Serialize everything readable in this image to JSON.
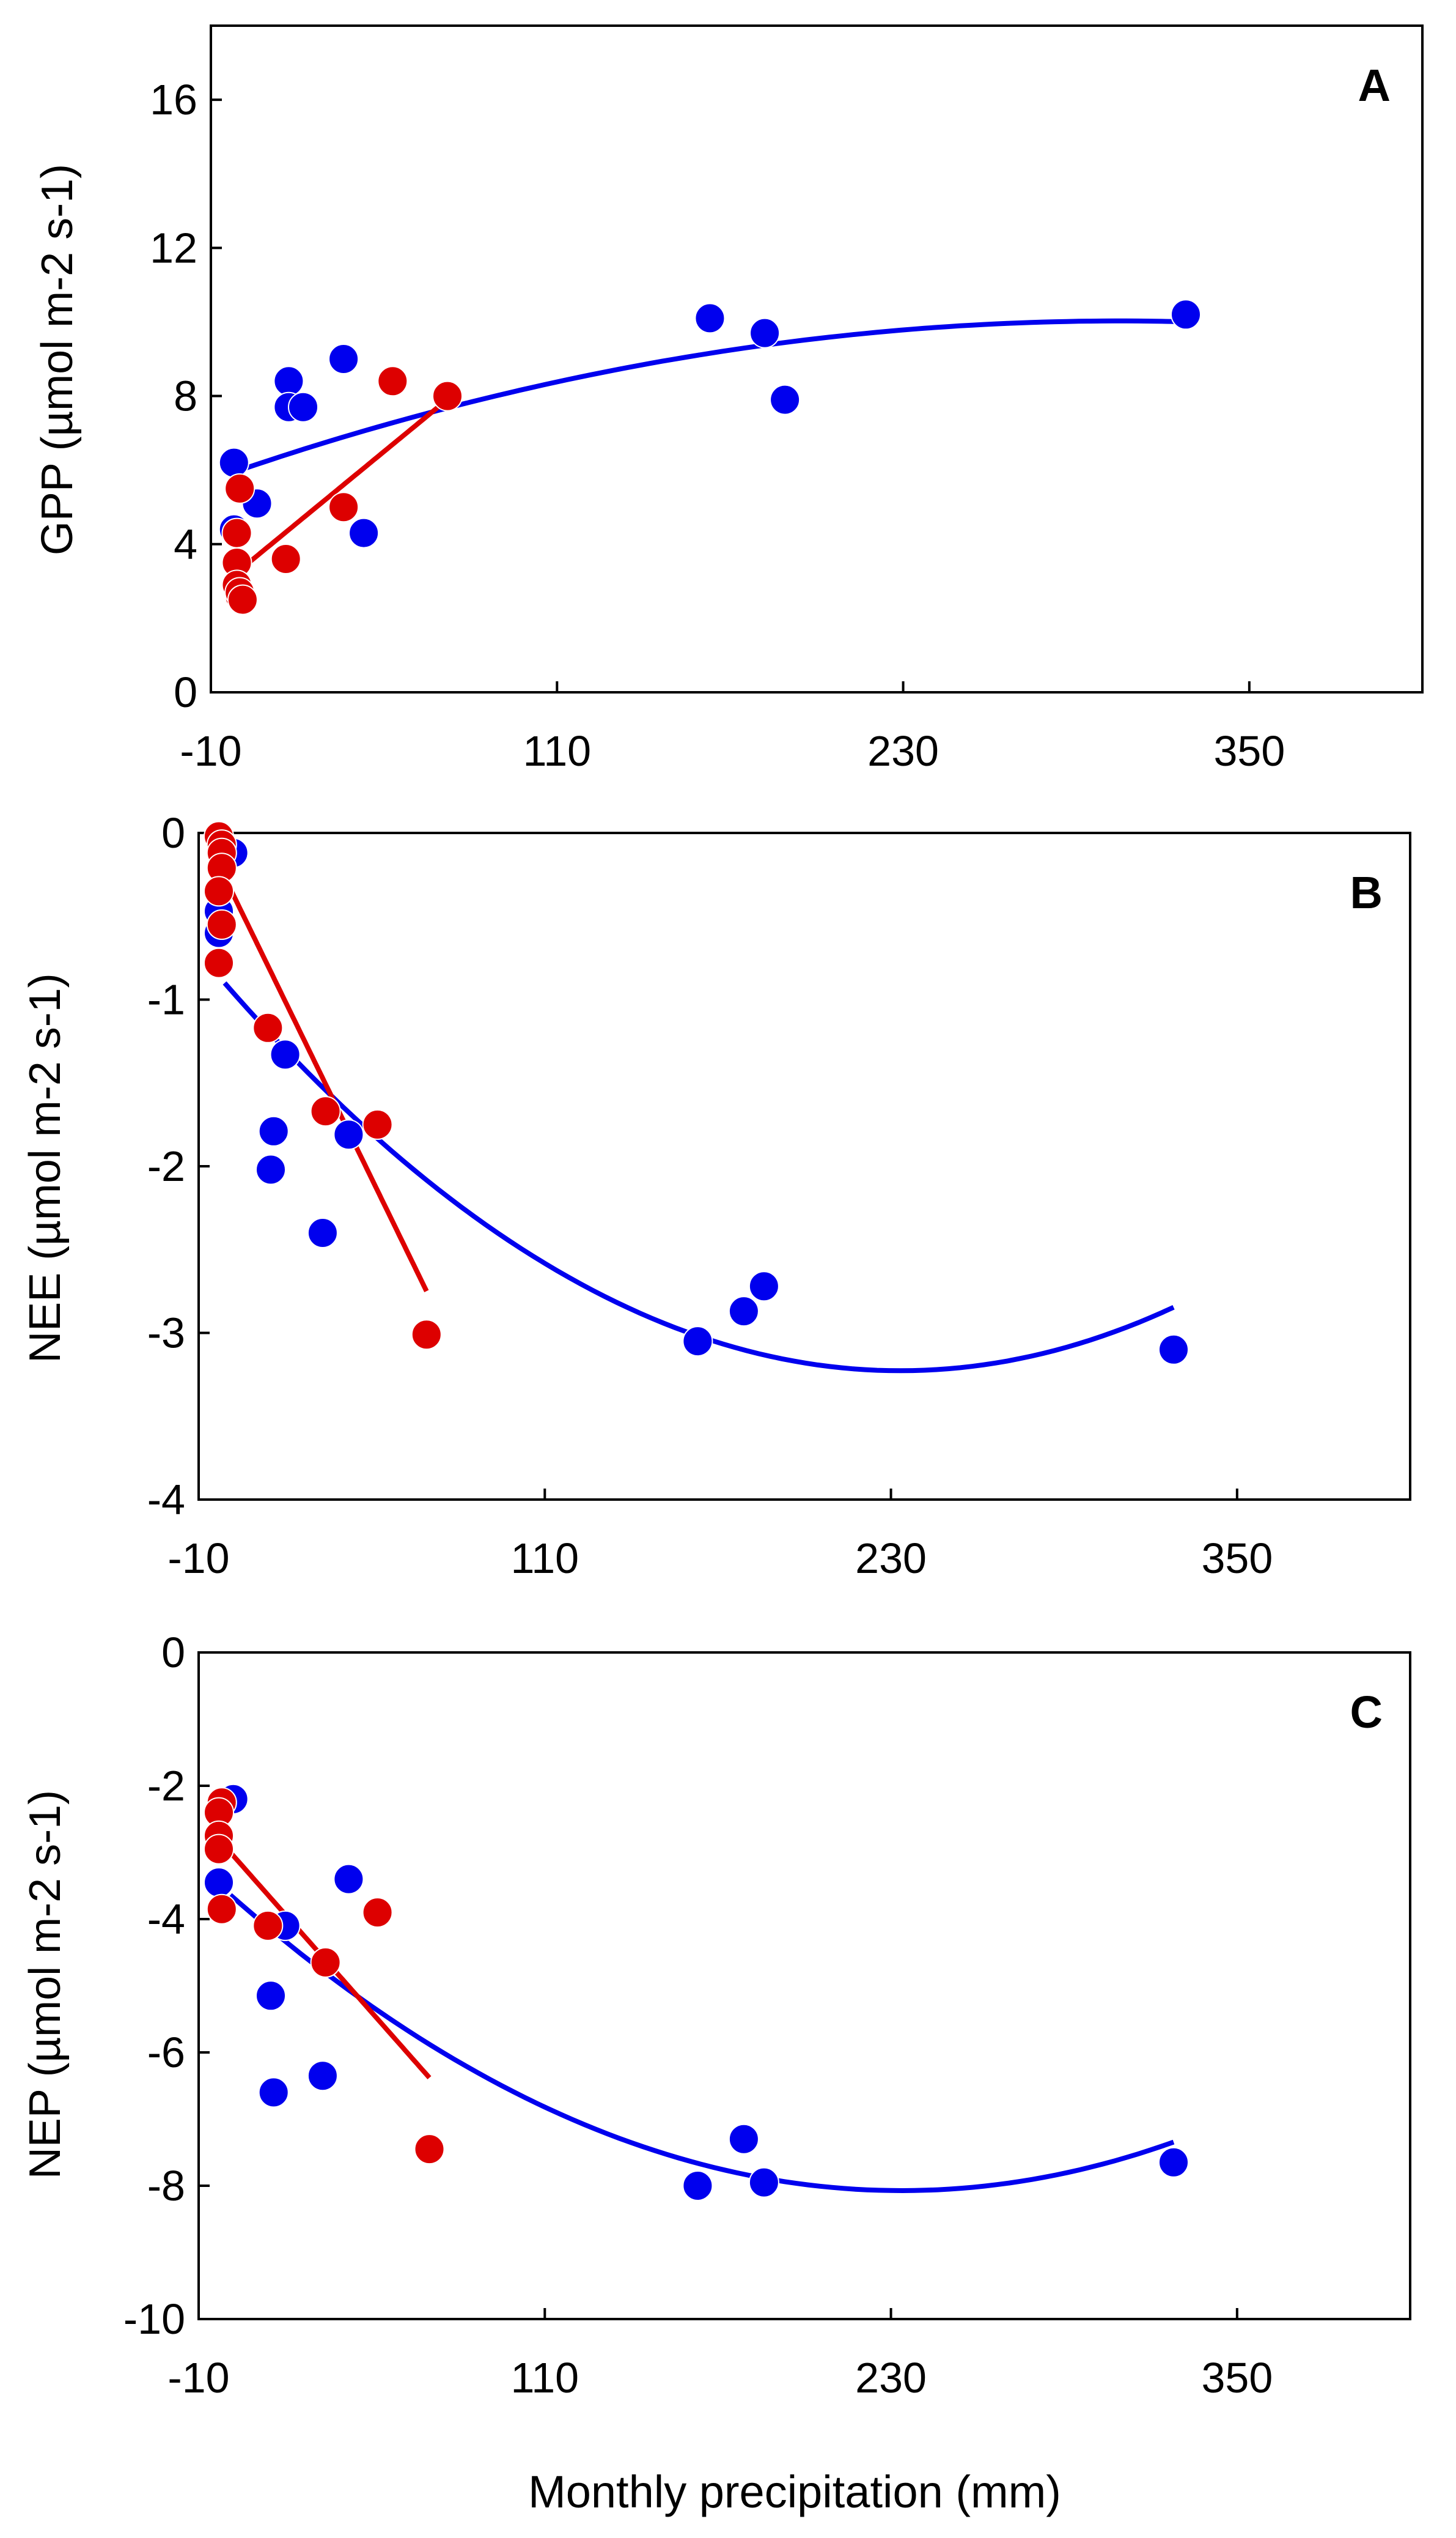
{
  "chart_data": [
    {
      "type": "scatter",
      "panel_label": "A",
      "ylabel": "GPP (µmol m-2 s-1)",
      "xlabel": "",
      "xlim": [
        -10,
        410
      ],
      "ylim": [
        0,
        18
      ],
      "xticks": [
        "-10",
        "110",
        "230",
        "350"
      ],
      "yticks": [
        "0",
        "4",
        "8",
        "12",
        "16"
      ],
      "series": [
        {
          "name": "blue",
          "color": "#0000ee",
          "points": [
            [
              -2,
              6.2
            ],
            [
              -2,
              4.4
            ],
            [
              6,
              5.1
            ],
            [
              17,
              8.4
            ],
            [
              17,
              7.7
            ],
            [
              22,
              7.7
            ],
            [
              36,
              9.0
            ],
            [
              43,
              4.3
            ],
            [
              163,
              10.1
            ],
            [
              182,
              9.7
            ],
            [
              189,
              7.9
            ],
            [
              328,
              10.2
            ]
          ],
          "fit": {
            "kind": "quadratic",
            "from": -2,
            "to": 328,
            "coef": [
              6.0,
              0.02641,
              -4.33e-05
            ]
          }
        },
        {
          "name": "red",
          "color": "#dd0000",
          "points": [
            [
              0,
              5.5
            ],
            [
              -1,
              4.3
            ],
            [
              -1,
              3.5
            ],
            [
              -1,
              2.9
            ],
            [
              0,
              2.6
            ],
            [
              0,
              2.7
            ],
            [
              1,
              2.5
            ],
            [
              16,
              3.6
            ],
            [
              36,
              5.0
            ],
            [
              53,
              8.4
            ],
            [
              72,
              8.0
            ]
          ],
          "fit": {
            "kind": "linear",
            "from": -1,
            "to": 72,
            "coef": [
              3.3,
              0.064
            ]
          }
        }
      ]
    },
    {
      "type": "scatter",
      "panel_label": "B",
      "ylabel": "NEE (µmol m-2 s-1)",
      "xlabel": "",
      "xlim": [
        -10,
        410
      ],
      "ylim": [
        -4,
        0
      ],
      "xticks": [
        "-10",
        "110",
        "230",
        "350"
      ],
      "yticks": [
        "0",
        "-1",
        "-2",
        "-3",
        "-4"
      ],
      "series": [
        {
          "name": "blue",
          "color": "#0000ee",
          "points": [
            [
              2,
              -0.12
            ],
            [
              -3,
              -0.47
            ],
            [
              -3,
              -0.6
            ],
            [
              15,
              -2.02
            ],
            [
              16,
              -1.79
            ],
            [
              20,
              -1.33
            ],
            [
              33,
              -2.4
            ],
            [
              42,
              -1.81
            ],
            [
              163,
              -3.05
            ],
            [
              179,
              -2.87
            ],
            [
              186,
              -2.72
            ],
            [
              328,
              -3.1
            ]
          ],
          "fit": {
            "kind": "quadratic",
            "from": -1,
            "to": 328,
            "coef": [
              -0.92,
              -0.01978,
              4.24e-05
            ]
          }
        },
        {
          "name": "red",
          "color": "#dd0000",
          "points": [
            [
              -3,
              -0.02
            ],
            [
              -2,
              -0.07
            ],
            [
              -2,
              -0.12
            ],
            [
              -2,
              -0.21
            ],
            [
              -3,
              -0.35
            ],
            [
              -2,
              -0.55
            ],
            [
              -3,
              -0.78
            ],
            [
              14,
              -1.17
            ],
            [
              34,
              -1.67
            ],
            [
              52,
              -1.75
            ],
            [
              69,
              -3.01
            ]
          ],
          "fit": {
            "kind": "linear",
            "from": 0,
            "to": 69,
            "coef": [
              -0.3,
              -0.0355
            ]
          }
        }
      ]
    },
    {
      "type": "scatter",
      "panel_label": "C",
      "ylabel": "NEP (µmol m-2 s-1)",
      "xlabel": "Monthly precipitation (mm)",
      "xlim": [
        -10,
        410
      ],
      "ylim": [
        -10,
        0
      ],
      "xticks": [
        "-10",
        "110",
        "230",
        "350"
      ],
      "yticks": [
        "0",
        "-2",
        "-4",
        "-6",
        "-8",
        "-10"
      ],
      "series": [
        {
          "name": "blue",
          "color": "#0000ee",
          "points": [
            [
              2,
              -2.2
            ],
            [
              -3,
              -3.45
            ],
            [
              15,
              -5.15
            ],
            [
              16,
              -6.6
            ],
            [
              20,
              -4.1
            ],
            [
              33,
              -6.35
            ],
            [
              42,
              -3.4
            ],
            [
              163,
              -8.0
            ],
            [
              179,
              -7.3
            ],
            [
              186,
              -7.95
            ],
            [
              328,
              -7.65
            ]
          ],
          "fit": {
            "kind": "quadratic",
            "from": 1,
            "to": 328,
            "coef": [
              -3.6,
              -0.03828,
              8.19e-05
            ]
          }
        },
        {
          "name": "red",
          "color": "#dd0000",
          "points": [
            [
              -2,
              -2.25
            ],
            [
              -3,
              -2.4
            ],
            [
              -3,
              -2.75
            ],
            [
              -3,
              -2.95
            ],
            [
              -2,
              -3.85
            ],
            [
              14,
              -4.1
            ],
            [
              34,
              -4.65
            ],
            [
              52,
              -3.9
            ],
            [
              70,
              -7.45
            ]
          ],
          "fit": {
            "kind": "linear",
            "from": 1,
            "to": 70,
            "coef": [
              -2.95,
              -0.049
            ]
          }
        }
      ]
    }
  ]
}
